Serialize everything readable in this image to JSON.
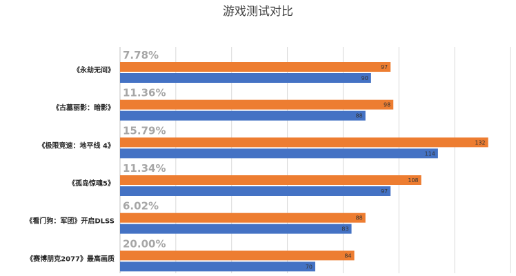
{
  "chart_data": {
    "type": "bar",
    "orientation": "horizontal",
    "title": "游戏测试对比",
    "categories": [
      "《永劫无间》",
      "《古墓丽影：暗影》",
      "《极限竞速：地平线 4》",
      "《孤岛惊魂5》",
      "《看门狗：军团》开启DLSS",
      "《赛博朋克2077》最高画质"
    ],
    "percent_labels": [
      "7.78%",
      "11.36%",
      "15.79%",
      "11.34%",
      "6.02%",
      "20.00%"
    ],
    "series": [
      {
        "values": [
          97,
          98,
          132,
          108,
          88,
          84
        ],
        "color": "#ED7D31"
      },
      {
        "values": [
          90,
          88,
          114,
          97,
          83,
          70
        ],
        "color": "#4472C4"
      }
    ],
    "xlim": [
      0,
      140
    ],
    "grid": true,
    "legend": "none"
  }
}
